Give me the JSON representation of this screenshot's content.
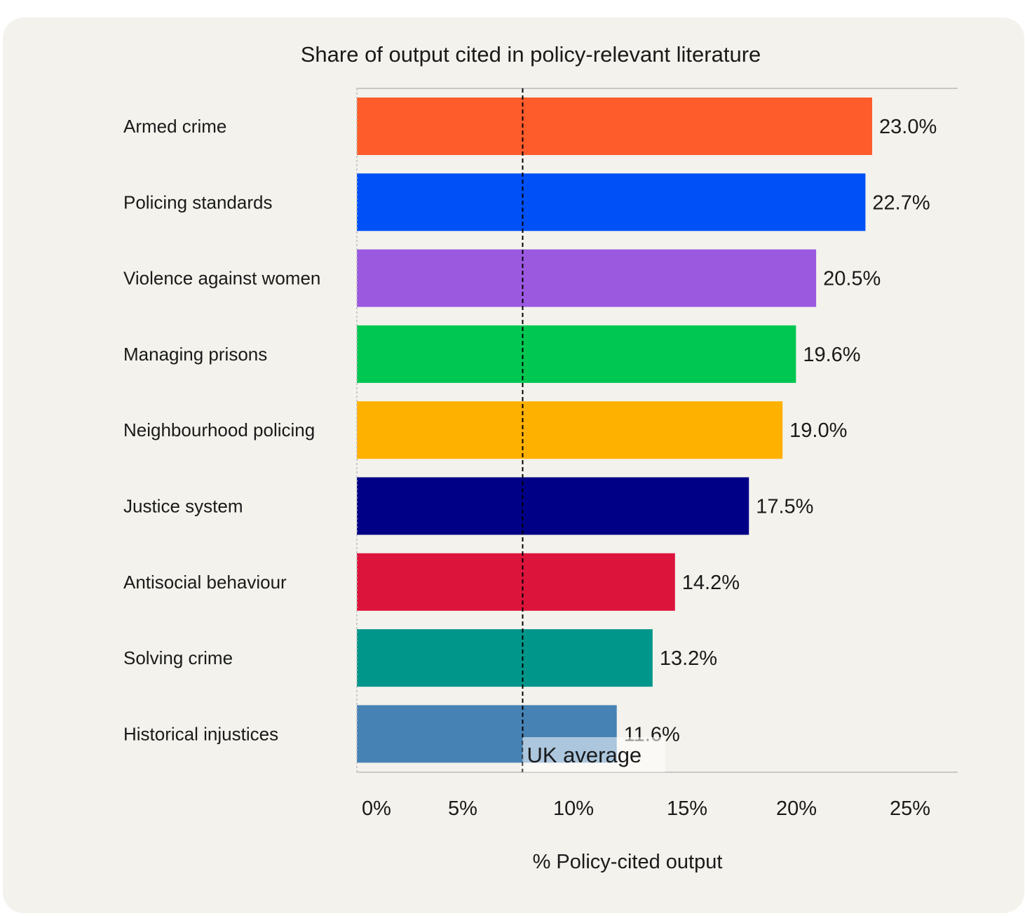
{
  "chart_data": {
    "type": "bar",
    "orientation": "horizontal",
    "title": "Share of output cited in policy-relevant literature",
    "xlabel": "% Policy-cited output",
    "ylabel": "",
    "xlim": [
      0,
      26.5
    ],
    "ticks": [
      0,
      5,
      10,
      15,
      20,
      25
    ],
    "tick_labels": [
      "0%",
      "5%",
      "10%",
      "15%",
      "20%",
      "25%"
    ],
    "grid": false,
    "categories": [
      "Armed crime",
      "Policing standards",
      "Violence against women",
      "Managing prisons",
      "Neighbourhood policing",
      "Justice system",
      "Antisocial behaviour",
      "Solving crime",
      "Historical injustices"
    ],
    "values": [
      23.0,
      22.7,
      20.5,
      19.6,
      19.0,
      17.5,
      14.2,
      13.2,
      11.6
    ],
    "value_labels": [
      "23.0%",
      "22.7%",
      "20.5%",
      "19.6%",
      "19.0%",
      "17.5%",
      "14.2%",
      "13.2%",
      "11.6%"
    ],
    "colors": [
      "#ff5c2b",
      "#0050f8",
      "#9b59e0",
      "#00c752",
      "#ffb100",
      "#000087",
      "#dc143c",
      "#00968a",
      "#4682b4"
    ],
    "reference_line": {
      "value": 7.4,
      "label": "UK average",
      "style": "dashed",
      "color": "#000000"
    },
    "background": "#f3f2ec"
  }
}
